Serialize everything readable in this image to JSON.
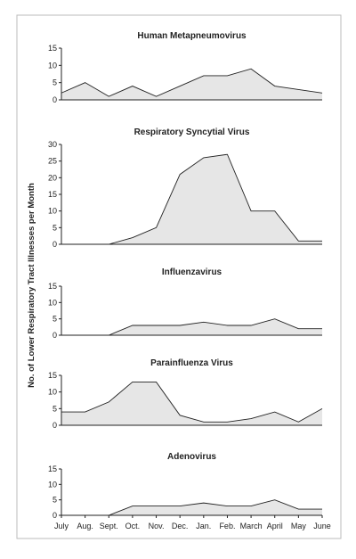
{
  "y_axis_label": "No. of Lower Respiratory Tract Illnesses per Month",
  "chart_data": [
    {
      "type": "area",
      "title": "Human Metapneumovirus",
      "values": [
        2,
        5,
        1,
        4,
        1,
        4,
        7,
        7,
        9,
        4,
        3,
        2
      ],
      "ylim": [
        0,
        15
      ],
      "yticks": [
        0,
        5,
        10,
        15
      ],
      "color": "#e6e6e6"
    },
    {
      "type": "area",
      "title": "Respiratory Syncytial Virus",
      "values": [
        0,
        0,
        0,
        2,
        5,
        21,
        26,
        27,
        10,
        10,
        1,
        1
      ],
      "ylim": [
        0,
        30
      ],
      "yticks": [
        0,
        5,
        10,
        15,
        20,
        25,
        30
      ],
      "color": "#e6e6e6"
    },
    {
      "type": "area",
      "title": "Influenzavirus",
      "values": [
        0,
        0,
        0,
        3,
        3,
        3,
        4,
        3,
        3,
        5,
        2,
        2
      ],
      "ylim": [
        0,
        15
      ],
      "yticks": [
        0,
        5,
        10,
        15
      ],
      "color": "#e6e6e6"
    },
    {
      "type": "area",
      "title": "Parainfluenza Virus",
      "values": [
        4,
        4,
        7,
        13,
        13,
        3,
        1,
        1,
        2,
        4,
        1,
        5
      ],
      "ylim": [
        0,
        15
      ],
      "yticks": [
        0,
        5,
        10,
        15
      ],
      "color": "#e6e6e6"
    },
    {
      "type": "area",
      "title": "Adenovirus",
      "categories": [
        "July",
        "Aug.",
        "Sept.",
        "Oct.",
        "Nov.",
        "Dec.",
        "Jan.",
        "Feb.",
        "March",
        "April",
        "May",
        "June"
      ],
      "values": [
        0,
        0,
        0,
        3,
        3,
        3,
        4,
        3,
        3,
        5,
        2,
        2
      ],
      "ylim": [
        0,
        15
      ],
      "yticks": [
        0,
        5,
        10,
        15
      ],
      "color": "#e6e6e6"
    }
  ]
}
